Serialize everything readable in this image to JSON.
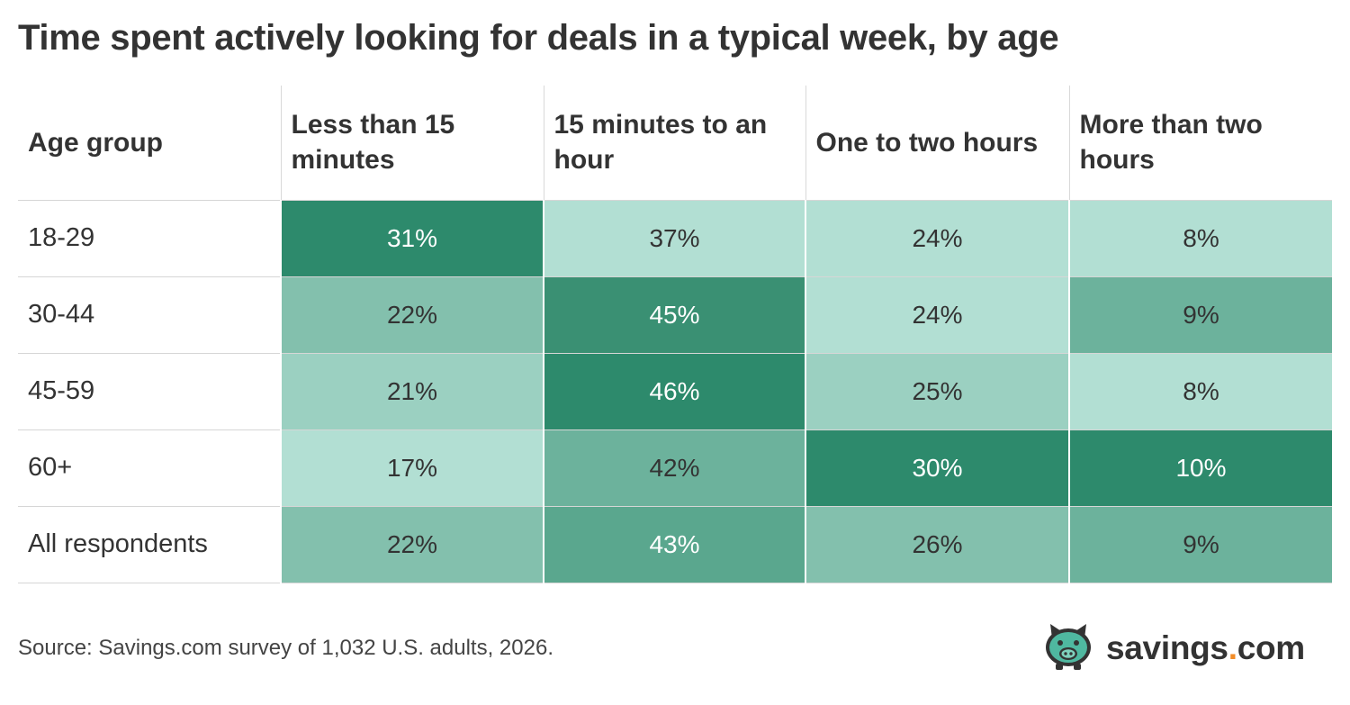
{
  "title": "Time spent actively looking for deals in a typical week, by age",
  "source": "Source: Savings.com survey of 1,032 U.S. adults, 2026.",
  "logo": {
    "name_before_dot": "savings",
    "dot": ".",
    "name_after_dot": "com",
    "icon": "pig-icon"
  },
  "colors": {
    "text_dark": "#333333",
    "text_light": "#ffffff",
    "scale": [
      "#b2dfd3",
      "#9bd0c1",
      "#83c0ad",
      "#6cb29c",
      "#5aa78e",
      "#3a9073",
      "#2d8a6c"
    ],
    "logo_accent": "#f28c28",
    "logo_pig": "#4fb8a0"
  },
  "chart_data": {
    "type": "table",
    "row_header_label": "Age group",
    "columns": [
      "Less than 15 minutes",
      "15 minutes to an hour",
      "One to two hours",
      "More than two hours"
    ],
    "rows": [
      {
        "label": "18-29",
        "values": [
          "31%",
          "37%",
          "24%",
          "8%"
        ],
        "levels": [
          6,
          0,
          0,
          0
        ]
      },
      {
        "label": "30-44",
        "values": [
          "22%",
          "45%",
          "24%",
          "9%"
        ],
        "levels": [
          2,
          5,
          0,
          3
        ]
      },
      {
        "label": "45-59",
        "values": [
          "21%",
          "46%",
          "25%",
          "8%"
        ],
        "levels": [
          1,
          6,
          1,
          0
        ]
      },
      {
        "label": "60+",
        "values": [
          "17%",
          "42%",
          "30%",
          "10%"
        ],
        "levels": [
          0,
          3,
          6,
          6
        ]
      },
      {
        "label": "All respondents",
        "values": [
          "22%",
          "43%",
          "26%",
          "9%"
        ],
        "levels": [
          2,
          4,
          2,
          3
        ]
      }
    ]
  }
}
